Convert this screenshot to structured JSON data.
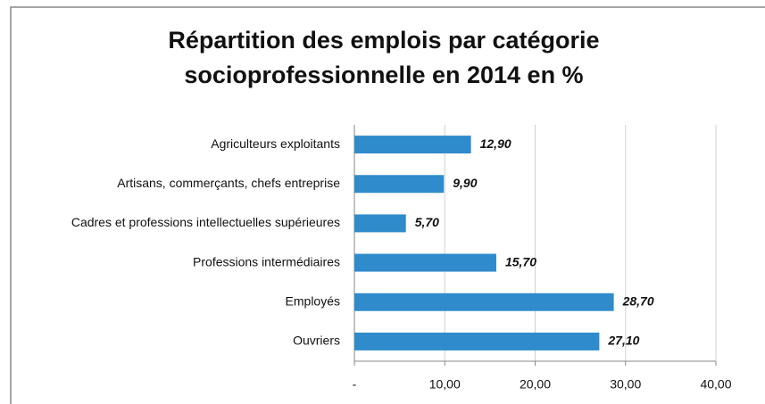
{
  "chart_data": {
    "type": "barh",
    "title": [
      "Répartition des emplois par catégorie",
      "socioprofessionnelle en 2014 en %"
    ],
    "categories": [
      "Agriculteurs exploitants",
      "Artisans, commerçants, chefs entreprise",
      "Cadres et professions intellectuelles supérieures",
      "Professions intermédiaires",
      "Employés",
      "Ouvriers"
    ],
    "values": [
      12.9,
      9.9,
      5.7,
      15.7,
      28.7,
      27.1
    ],
    "value_labels": [
      "12,90",
      "9,90",
      "5,70",
      "15,70",
      "28,70",
      "27,10"
    ],
    "color": "#2f8bcb",
    "xlim": [
      0,
      40
    ],
    "xticks": [
      {
        "value": 0,
        "label": "-"
      },
      {
        "value": 10,
        "label": "10,00"
      },
      {
        "value": 20,
        "label": "20,00"
      },
      {
        "value": 30,
        "label": "30,00"
      },
      {
        "value": 40,
        "label": "40,00"
      }
    ],
    "grid": true
  }
}
